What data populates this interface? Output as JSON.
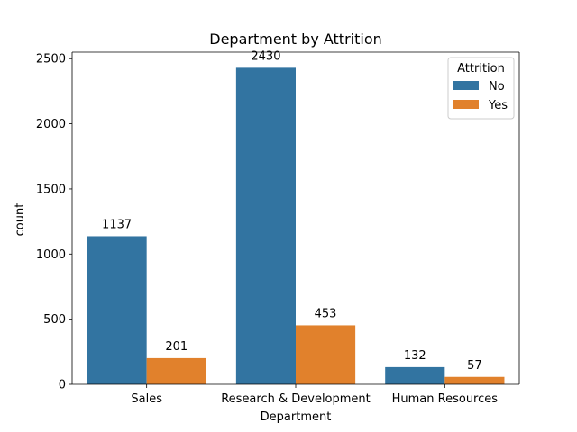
{
  "chart_data": {
    "type": "bar",
    "title": "Department by Attrition",
    "xlabel": "Department",
    "ylabel": "count",
    "categories": [
      "Sales",
      "Research & Development",
      "Human Resources"
    ],
    "series": [
      {
        "name": "No",
        "color": "#3274a1",
        "values": [
          1137,
          2430,
          132
        ]
      },
      {
        "name": "Yes",
        "color": "#e1812c",
        "values": [
          201,
          453,
          57
        ]
      }
    ],
    "ylim": [
      0,
      2550
    ],
    "yticks": [
      0,
      500,
      1000,
      1500,
      2000,
      2500
    ],
    "legend": {
      "title": "Attrition",
      "position": "top-right"
    },
    "grid": false
  }
}
